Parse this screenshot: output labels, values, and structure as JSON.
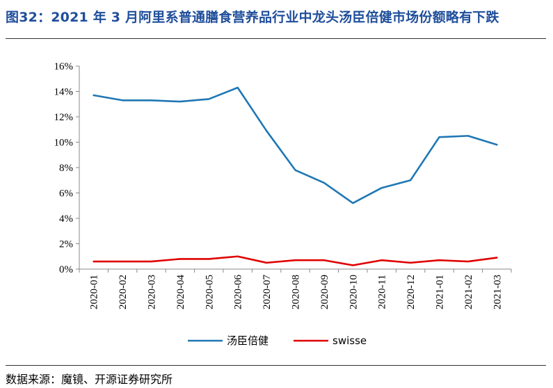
{
  "title": "图32：2021 年 3 月阿里系普通膳食营养品行业中龙头汤臣倍健市场份额略有下跌",
  "source": "数据来源：魔镜、开源证券研究所",
  "chart_data": {
    "type": "line",
    "categories": [
      "2020-01",
      "2020-02",
      "2020-03",
      "2020-04",
      "2020-05",
      "2020-06",
      "2020-07",
      "2020-08",
      "2020-09",
      "2020-10",
      "2020-11",
      "2020-12",
      "2021-01",
      "2021-02",
      "2021-03"
    ],
    "y_ticks": [
      "0%",
      "2%",
      "4%",
      "6%",
      "8%",
      "10%",
      "12%",
      "14%",
      "16%"
    ],
    "ylim": [
      0,
      16
    ],
    "grid": false,
    "legend_position": "bottom",
    "series": [
      {
        "name": "汤臣倍健",
        "color": "#1f77b4",
        "values": [
          13.7,
          13.3,
          13.3,
          13.2,
          13.4,
          14.3,
          10.9,
          7.8,
          6.8,
          5.2,
          6.4,
          7.0,
          10.4,
          10.5,
          9.8
        ]
      },
      {
        "name": "swisse",
        "color": "#e00000",
        "values": [
          0.6,
          0.6,
          0.6,
          0.8,
          0.8,
          1.0,
          0.5,
          0.7,
          0.7,
          0.3,
          0.7,
          0.5,
          0.7,
          0.6,
          0.9
        ]
      }
    ]
  }
}
